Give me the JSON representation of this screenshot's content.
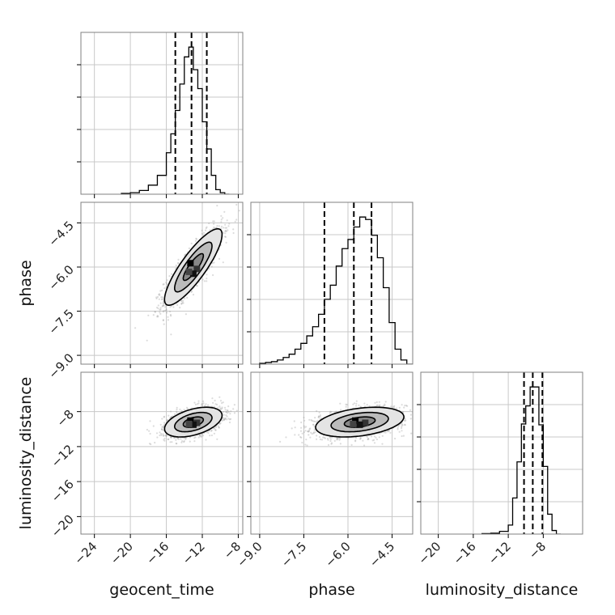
{
  "chart_data": {
    "type": "corner",
    "parameters": [
      "geocent_time",
      "phase",
      "luminosity_distance"
    ],
    "axis_labels": {
      "x": [
        "geocent_time",
        "phase",
        "luminosity_distance"
      ],
      "y": [
        "",
        "phase",
        "luminosity_distance"
      ]
    },
    "ranges": {
      "geocent_time": [
        -25.5,
        -7.5
      ],
      "phase": [
        -9.3,
        -3.8
      ],
      "luminosity_distance": [
        -22.0,
        -3.5
      ]
    },
    "ticks": {
      "geocent_time": [
        -24,
        -20,
        -16,
        -12,
        -8
      ],
      "phase": [
        -9.0,
        -7.5,
        -6.0,
        -4.5
      ],
      "luminosity_distance": [
        -20,
        -16,
        -12,
        -8
      ]
    },
    "tick_labels": {
      "geocent_time": [
        "−24",
        "−20",
        "−16",
        "−12",
        "−8"
      ],
      "phase": [
        "−9.0",
        "−7.5",
        "−6.0",
        "−4.5"
      ],
      "luminosity_distance": [
        "−20",
        "−16",
        "−12",
        "−8"
      ]
    },
    "quantiles": {
      "geocent_time": [
        -15.0,
        -13.2,
        -11.5
      ],
      "phase": [
        -6.8,
        -5.8,
        -5.2
      ],
      "luminosity_distance": [
        -10.2,
        -9.2,
        -8.1
      ]
    },
    "histograms": {
      "geocent_time": {
        "edges": [
          -21,
          -20,
          -19,
          -18,
          -17,
          -16,
          -15.5,
          -15,
          -14.5,
          -14,
          -13.5,
          -13,
          -12.5,
          -12,
          -11.5,
          -11,
          -10.5,
          -10,
          -9.5,
          -9
        ],
        "counts": [
          1,
          2,
          5,
          12,
          25,
          55,
          80,
          111,
          146,
          182,
          195,
          165,
          140,
          96,
          60,
          25,
          6,
          2,
          0
        ]
      },
      "phase": {
        "edges": [
          -9.0,
          -8.8,
          -8.6,
          -8.4,
          -8.2,
          -8.0,
          -7.8,
          -7.6,
          -7.4,
          -7.2,
          -7.0,
          -6.8,
          -6.6,
          -6.4,
          -6.2,
          -6.0,
          -5.8,
          -5.6,
          -5.4,
          -5.2,
          -5.0,
          -4.8,
          -4.6,
          -4.4,
          -4.2,
          -4.0,
          -3.8
        ],
        "counts": [
          1,
          2,
          3,
          5,
          8,
          12,
          18,
          25,
          34,
          45,
          60,
          78,
          95,
          118,
          139,
          150,
          165,
          177,
          174,
          155,
          128,
          92,
          50,
          18,
          5,
          0
        ]
      },
      "luminosity_distance": {
        "edges": [
          -15,
          -14,
          -13,
          -12,
          -11.5,
          -11,
          -10.5,
          -10,
          -9.5,
          -9,
          -8.5,
          -8,
          -7.5,
          -7,
          -6.5,
          -6
        ],
        "counts": [
          0.5,
          1,
          3,
          10,
          40,
          80,
          122,
          142,
          163,
          163,
          121,
          75,
          22,
          4,
          0
        ]
      }
    },
    "scatter": {
      "phase_vs_geocent_time": {
        "mean": [
          -13.0,
          -6.0
        ],
        "sd": [
          1.6,
          0.65
        ],
        "corr": 0.85,
        "n": 1500,
        "contours": [
          {
            "sigma": 0.7,
            "fill": "#888888"
          },
          {
            "sigma": 1.3,
            "fill": "#bbbbbb"
          },
          {
            "sigma": 2.0,
            "fill": "#e4e4e4"
          }
        ]
      },
      "luminosity_distance_vs_geocent_time": {
        "mean": [
          -13.0,
          -9.2
        ],
        "sd": [
          1.6,
          0.85
        ],
        "corr": 0.45,
        "n": 1500,
        "contours": [
          {
            "sigma": 0.7,
            "fill": "#888888"
          },
          {
            "sigma": 1.3,
            "fill": "#bbbbbb"
          },
          {
            "sigma": 2.0,
            "fill": "#e4e4e4"
          }
        ]
      },
      "luminosity_distance_vs_phase": {
        "mean": [
          -5.6,
          -9.2
        ],
        "sd": [
          0.75,
          0.85
        ],
        "corr": 0.35,
        "n": 1500,
        "contours": [
          {
            "sigma": 0.7,
            "fill": "#888888"
          },
          {
            "sigma": 1.3,
            "fill": "#bbbbbb"
          },
          {
            "sigma": 2.0,
            "fill": "#e4e4e4"
          }
        ]
      }
    },
    "grid": true,
    "colors": {
      "line": "#000000",
      "grid": "#c8c8c8",
      "frame": "#808080",
      "points": "#9a9a9a"
    }
  }
}
